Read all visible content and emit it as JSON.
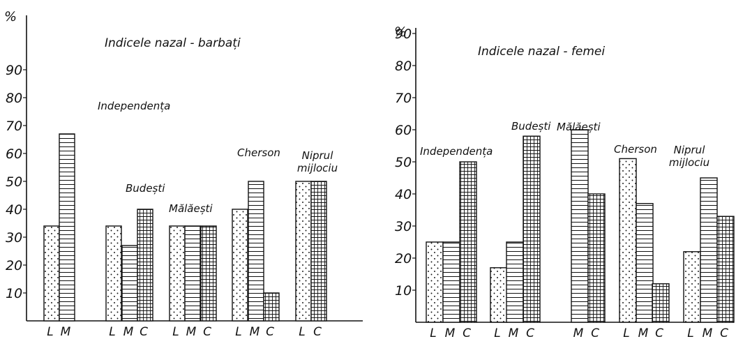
{
  "chart_data": [
    {
      "type": "bar",
      "title": "Indicele nazal - barbați",
      "ylabel": "%",
      "ylim": [
        0,
        90
      ],
      "yticks": [
        10,
        20,
        30,
        40,
        50,
        60,
        70,
        80,
        90
      ],
      "grid": false,
      "legend": "none",
      "series_labels": [
        "L",
        "M",
        "C"
      ],
      "groups": [
        {
          "name": "Independența",
          "labels": [
            "L",
            "M"
          ],
          "values": [
            34,
            67
          ]
        },
        {
          "name": "Budești",
          "labels": [
            "L",
            "M",
            "C"
          ],
          "values": [
            34,
            27,
            40
          ]
        },
        {
          "name": "Mălăești",
          "labels": [
            "L",
            "M",
            "C"
          ],
          "values": [
            34,
            34,
            34
          ]
        },
        {
          "name": "Cherson",
          "labels": [
            "L",
            "M",
            "C"
          ],
          "values": [
            40,
            50,
            10
          ]
        },
        {
          "name": "Niprul mijlociu",
          "labels": [
            "L",
            "C"
          ],
          "values": [
            50,
            50
          ]
        }
      ]
    },
    {
      "type": "bar",
      "title": "Indicele nazal - femei",
      "ylabel": "%",
      "ylim": [
        0,
        90
      ],
      "yticks": [
        10,
        20,
        30,
        40,
        50,
        60,
        70,
        80,
        90
      ],
      "grid": false,
      "legend": "none",
      "series_labels": [
        "L",
        "M",
        "C"
      ],
      "groups": [
        {
          "name": "Independența",
          "labels": [
            "L",
            "M",
            "C"
          ],
          "values": [
            25,
            25,
            50
          ]
        },
        {
          "name": "Budești",
          "labels": [
            "L",
            "M",
            "C"
          ],
          "values": [
            17,
            25,
            58
          ]
        },
        {
          "name": "Mălăești",
          "labels": [
            "M",
            "C"
          ],
          "values": [
            60,
            40
          ]
        },
        {
          "name": "Cherson",
          "labels": [
            "L",
            "M",
            "C"
          ],
          "values": [
            51,
            37,
            12
          ]
        },
        {
          "name": "Niprul mijlociu",
          "labels": [
            "L",
            "M",
            "C"
          ],
          "values": [
            22,
            45,
            33
          ]
        }
      ]
    }
  ],
  "colors": {
    "ink": "#111111",
    "background": "#ffffff"
  }
}
